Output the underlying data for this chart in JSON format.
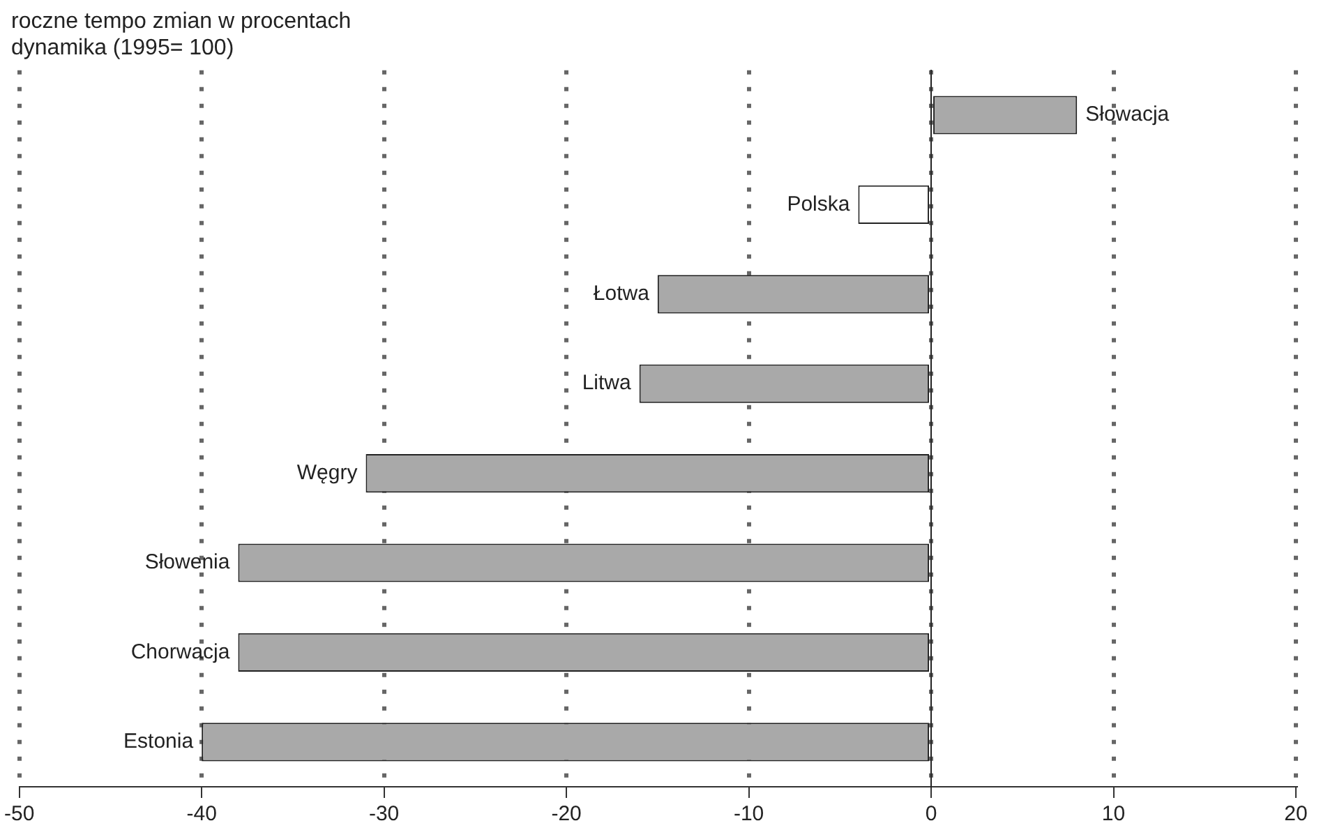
{
  "chart_data": {
    "type": "bar",
    "orientation": "horizontal",
    "title": "roczne tempo zmian w procentach",
    "subtitle": "dynamika (1995= 100)",
    "categories": [
      "Słowacja",
      "Polska",
      "Łotwa",
      "Litwa",
      "Węgry",
      "Słowenia",
      "Chorwacja",
      "Estonia"
    ],
    "values": [
      8,
      -4,
      -15,
      -16,
      -31,
      -38,
      -38,
      -40
    ],
    "colors": [
      "#a9a9a9",
      "#ffffff",
      "#a9a9a9",
      "#a9a9a9",
      "#a9a9a9",
      "#a9a9a9",
      "#a9a9a9",
      "#a9a9a9"
    ],
    "xlim": [
      -50,
      20
    ],
    "xticks": [
      -50,
      -40,
      -30,
      -20,
      -10,
      0,
      10,
      20
    ],
    "grid": "x",
    "legend": false
  }
}
